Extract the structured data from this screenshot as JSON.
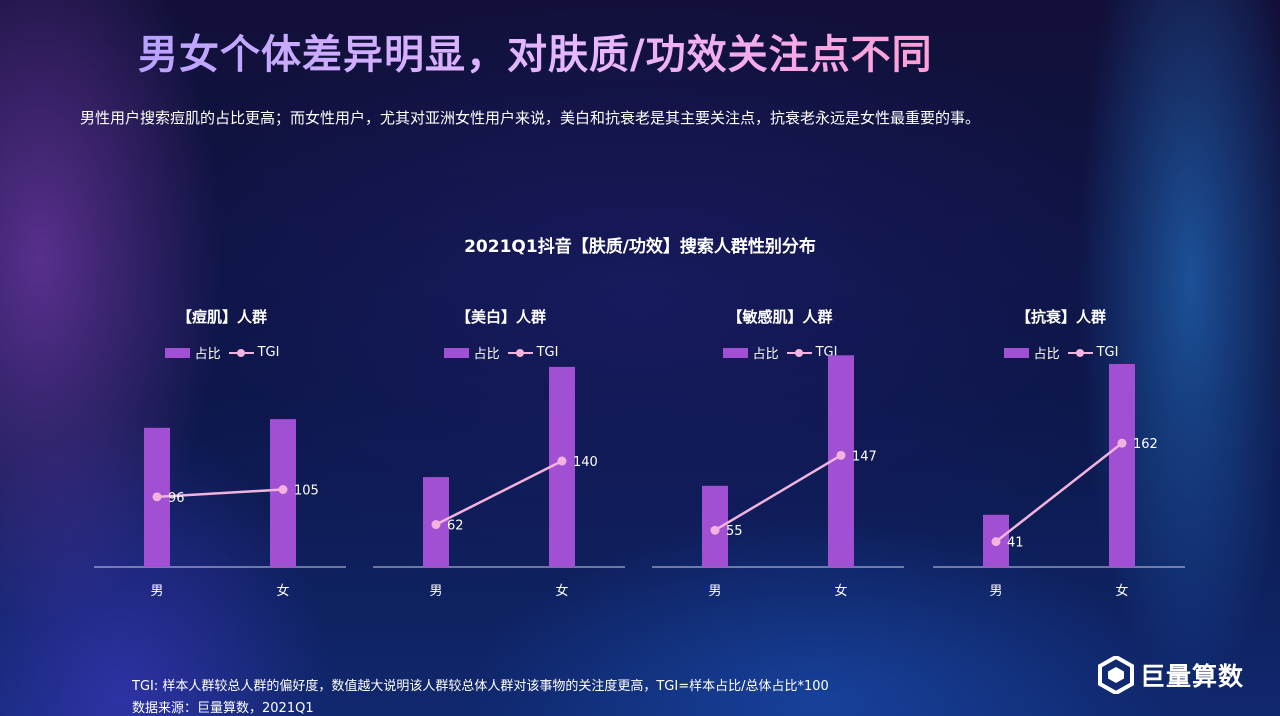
{
  "header": {
    "title": "男女个体差异明显，对肤质/功效关注点不同",
    "subtitle": "男性用户搜索痘肌的占比更高；而女性用户，尤其对亚洲女性用户来说，美白和抗衰老是其主要关注点，抗衰老永远是女性最重要的事。"
  },
  "chart_section_title": "2021Q1抖音【肤质/功效】搜索人群性别分布",
  "legend": {
    "bar_label": "占比",
    "line_label": "TGI"
  },
  "colors": {
    "bar": "#a14fd3",
    "line": "#f2b3df",
    "axis": "#c9cfe6"
  },
  "chart_data": [
    {
      "type": "bar",
      "title": "【痘肌】人群",
      "categories": [
        "男",
        "女"
      ],
      "series": [
        {
          "name": "占比",
          "type": "bar",
          "values": [
            0.48,
            0.51
          ]
        },
        {
          "name": "TGI",
          "type": "line",
          "values": [
            96,
            105
          ]
        }
      ],
      "legend": "top-center",
      "grid": false
    },
    {
      "type": "bar",
      "title": "【美白】人群",
      "categories": [
        "男",
        "女"
      ],
      "series": [
        {
          "name": "占比",
          "type": "bar",
          "values": [
            0.31,
            0.69
          ]
        },
        {
          "name": "TGI",
          "type": "line",
          "values": [
            62,
            140
          ]
        }
      ],
      "legend": "top-center",
      "grid": false
    },
    {
      "type": "bar",
      "title": "【敏感肌】人群",
      "categories": [
        "男",
        "女"
      ],
      "series": [
        {
          "name": "占比",
          "type": "bar",
          "values": [
            0.28,
            0.73
          ]
        },
        {
          "name": "TGI",
          "type": "line",
          "values": [
            55,
            147
          ]
        }
      ],
      "legend": "top-center",
      "grid": false
    },
    {
      "type": "bar",
      "title": "【抗衰】人群",
      "categories": [
        "男",
        "女"
      ],
      "series": [
        {
          "name": "占比",
          "type": "bar",
          "values": [
            0.18,
            0.7
          ]
        },
        {
          "name": "TGI",
          "type": "line",
          "values": [
            41,
            162
          ]
        }
      ],
      "legend": "top-center",
      "grid": false
    }
  ],
  "footer": {
    "tgi_note": "TGI: 样本人群较总人群的偏好度，数值越大说明该人群较总体人群对该事物的关注度更高，TGI=样本占比/总体占比*100",
    "source": "数据来源：巨量算数，2021Q1"
  },
  "logo": {
    "text": "巨量算数",
    "icon": "juliang-logo-icon"
  }
}
